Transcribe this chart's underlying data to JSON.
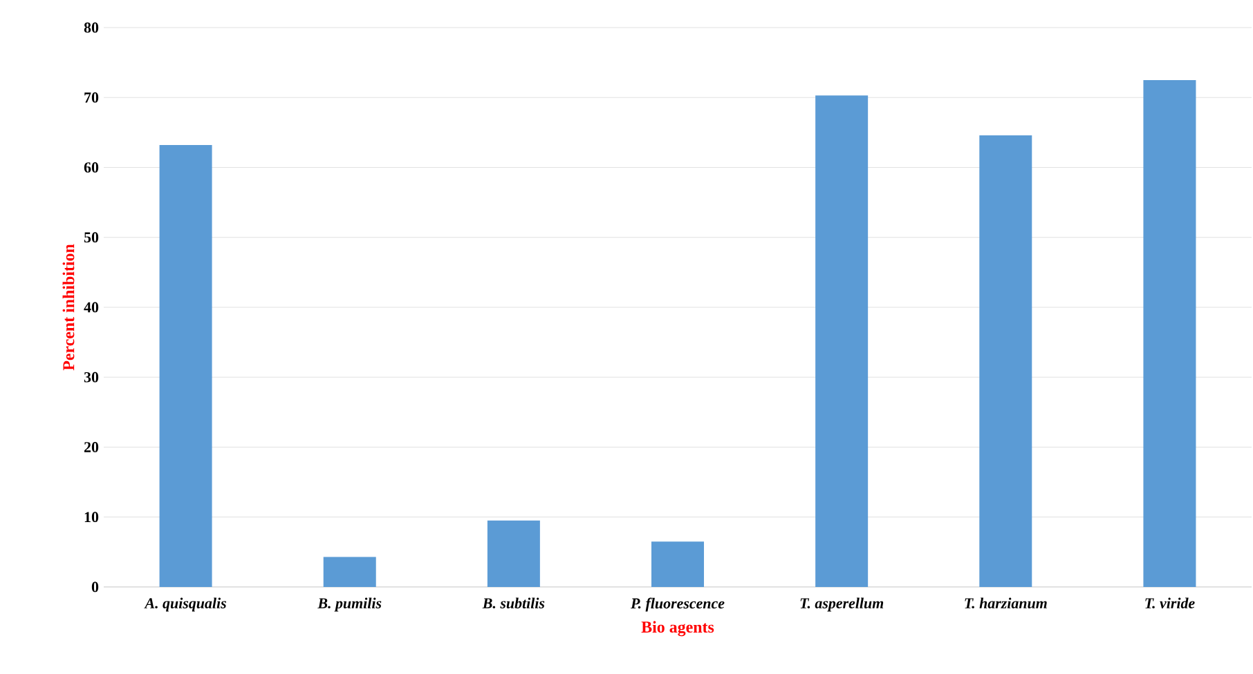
{
  "chart_data": {
    "type": "bar",
    "xlabel": "Bio agents",
    "ylabel": "Percent inhibition",
    "categories": [
      "A. quisqualis",
      "B. pumilis",
      "B. subtilis",
      "P. fluorescence",
      "T. asperellum",
      "T.  harzianum",
      "T. viride"
    ],
    "values": [
      63.2,
      4.3,
      9.5,
      6.5,
      70.3,
      64.6,
      72.5
    ],
    "color": "#5b9bd5",
    "ylim": [
      0,
      80
    ],
    "yticks": [
      0,
      10,
      20,
      30,
      40,
      50,
      60,
      70,
      80
    ],
    "grid": "y"
  }
}
